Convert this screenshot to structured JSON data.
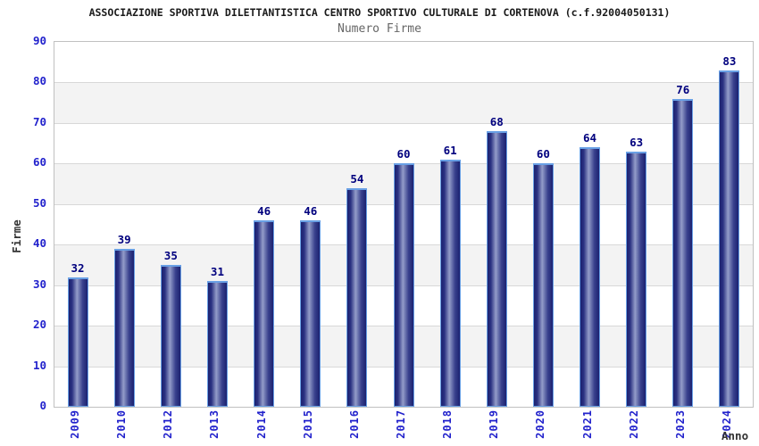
{
  "header": {
    "title": "ASSOCIAZIONE SPORTIVA DILETTANTISTICA CENTRO SPORTIVO CULTURALE DI CORTENOVA (c.f.92004050131)",
    "subtitle": "Numero Firme"
  },
  "chart_data": {
    "type": "bar",
    "title": "ASSOCIAZIONE SPORTIVA DILETTANTISTICA CENTRO SPORTIVO CULTURALE DI CORTENOVA (c.f.92004050131)",
    "subtitle": "Numero Firme",
    "xlabel": "Anno",
    "ylabel": "Firme",
    "categories": [
      "2009",
      "2010",
      "2012",
      "2013",
      "2014",
      "2015",
      "2016",
      "2017",
      "2018",
      "2019",
      "2020",
      "2021",
      "2022",
      "2023",
      "2024"
    ],
    "values": [
      32,
      39,
      35,
      31,
      46,
      46,
      54,
      60,
      61,
      68,
      60,
      64,
      63,
      76,
      83
    ],
    "ylim": [
      0,
      90
    ],
    "yticks": [
      0,
      10,
      20,
      30,
      40,
      50,
      60,
      70,
      80,
      90
    ],
    "grid": true,
    "legend_position": "none",
    "alternating_bands": true,
    "colors": {
      "bar_dark": "#1b2170",
      "bar_light": "#939cc9",
      "bar_border": "#69a0e5",
      "value_label": "#00007e",
      "axis_tick_label": "#2222cc",
      "band_gray": "#f3f3f3",
      "gridline": "#d8d8d8",
      "plot_border": "#c0c0c0",
      "title": "#1a1a1a",
      "subtitle": "#666666",
      "axis_title": "#333333"
    }
  }
}
